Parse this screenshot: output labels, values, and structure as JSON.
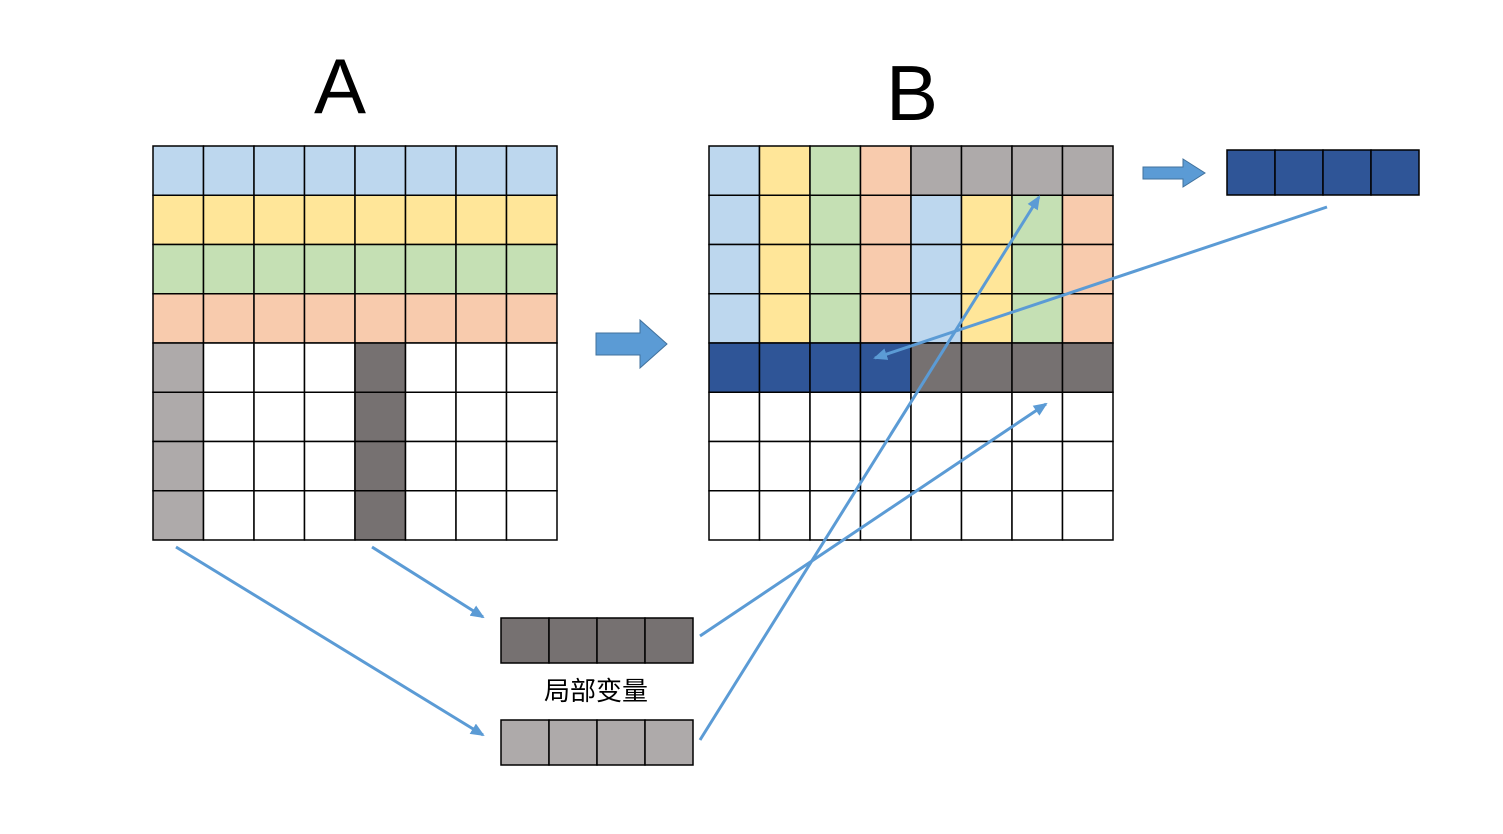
{
  "titles": {
    "a": "A",
    "b": "B"
  },
  "local_variable_label": "局部变量",
  "colors": {
    "blue": "#BDD7EE",
    "yellow": "#FFE699",
    "green": "#C5E0B4",
    "orange": "#F8CBAD",
    "light_gray": "#AEAAAA",
    "dark_gray": "#767171",
    "navy": "#2F5597",
    "white": "#FFFFFF",
    "arrow": "#5B9BD5",
    "grid_line": "#000000"
  },
  "matrix_a": [
    [
      "blue",
      "blue",
      "blue",
      "blue",
      "blue",
      "blue",
      "blue",
      "blue"
    ],
    [
      "yellow",
      "yellow",
      "yellow",
      "yellow",
      "yellow",
      "yellow",
      "yellow",
      "yellow"
    ],
    [
      "green",
      "green",
      "green",
      "green",
      "green",
      "green",
      "green",
      "green"
    ],
    [
      "orange",
      "orange",
      "orange",
      "orange",
      "orange",
      "orange",
      "orange",
      "orange"
    ],
    [
      "light_gray",
      "white",
      "white",
      "white",
      "dark_gray",
      "white",
      "white",
      "white"
    ],
    [
      "light_gray",
      "white",
      "white",
      "white",
      "dark_gray",
      "white",
      "white",
      "white"
    ],
    [
      "light_gray",
      "white",
      "white",
      "white",
      "dark_gray",
      "white",
      "white",
      "white"
    ],
    [
      "light_gray",
      "white",
      "white",
      "white",
      "dark_gray",
      "white",
      "white",
      "white"
    ]
  ],
  "matrix_b": [
    [
      "blue",
      "yellow",
      "green",
      "orange",
      "light_gray",
      "light_gray",
      "light_gray",
      "light_gray"
    ],
    [
      "blue",
      "yellow",
      "green",
      "orange",
      "blue",
      "yellow",
      "green",
      "orange"
    ],
    [
      "blue",
      "yellow",
      "green",
      "orange",
      "blue",
      "yellow",
      "green",
      "orange"
    ],
    [
      "blue",
      "yellow",
      "green",
      "orange",
      "blue",
      "yellow",
      "green",
      "orange"
    ],
    [
      "navy",
      "navy",
      "navy",
      "navy",
      "dark_gray",
      "dark_gray",
      "dark_gray",
      "dark_gray"
    ],
    [
      "white",
      "white",
      "white",
      "white",
      "white",
      "white",
      "white",
      "white"
    ],
    [
      "white",
      "white",
      "white",
      "white",
      "white",
      "white",
      "white",
      "white"
    ],
    [
      "white",
      "white",
      "white",
      "white",
      "white",
      "white",
      "white",
      "white"
    ]
  ],
  "local_vector_dark": [
    "dark_gray",
    "dark_gray",
    "dark_gray",
    "dark_gray"
  ],
  "local_vector_light": [
    "light_gray",
    "light_gray",
    "light_gray",
    "light_gray"
  ],
  "output_vector": [
    "navy",
    "navy",
    "navy",
    "navy"
  ]
}
